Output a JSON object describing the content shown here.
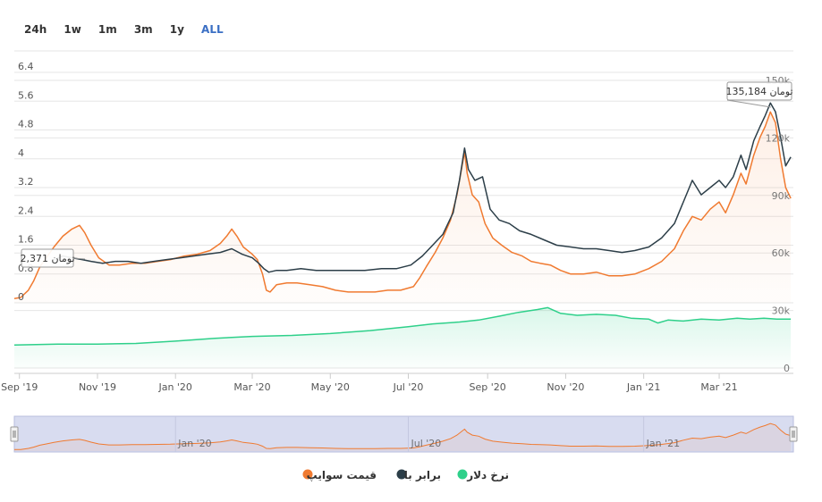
{
  "range_selector": [
    "24h",
    "1w",
    "1m",
    "3m",
    "1y",
    "ALL"
  ],
  "range_selected": "ALL",
  "colors": {
    "swipe": "#f07a30",
    "baraber": "#2c3e48",
    "dollar": "#2ed08a",
    "grid": "#e6e6e6",
    "navigator_mask": "#d8dcf0"
  },
  "chart_data": {
    "type": "line",
    "x_tick_labels": [
      "Sep '19",
      "Nov '19",
      "Jan '20",
      "Mar '20",
      "May '20",
      "Jul '20",
      "Sep '20",
      "Nov '20",
      "Jan '21",
      "Mar '21"
    ],
    "x_ticks": [
      "2019-09-01",
      "2019-11-01",
      "2020-01-01",
      "2020-03-01",
      "2020-05-01",
      "2020-07-01",
      "2020-09-01",
      "2020-11-01",
      "2021-01-01",
      "2021-03-01"
    ],
    "xlim": [
      "2019-08-28",
      "2021-04-28"
    ],
    "left_axis": {
      "ticks": [
        "0",
        "0.8",
        "1.6",
        "2.4",
        "3.2",
        "4",
        "4.8",
        "5.6",
        "6.4"
      ],
      "ylim": [
        0,
        6.4
      ]
    },
    "right_axis": {
      "ticks": [
        "0",
        "30k",
        "60k",
        "90k",
        "120k",
        "150k"
      ],
      "ylim": [
        0,
        150000
      ]
    },
    "navigator_labels": [
      "Jan '20",
      "Jul '20",
      "Jan '21"
    ],
    "tooltips": [
      {
        "text": "2,371 تومان"
      },
      {
        "text": "135,184 تومان"
      }
    ],
    "grid": true,
    "legend_placement": "bottom-center",
    "series": [
      {
        "name": "قیمت سوایپ",
        "color": "#f07a30",
        "axis": "left",
        "points": [
          [
            "2019-08-28",
            0.12
          ],
          [
            "2019-09-02",
            0.15
          ],
          [
            "2019-09-08",
            0.35
          ],
          [
            "2019-09-12",
            0.6
          ],
          [
            "2019-09-17",
            1.0
          ],
          [
            "2019-09-22",
            1.25
          ],
          [
            "2019-09-28",
            1.55
          ],
          [
            "2019-10-05",
            1.85
          ],
          [
            "2019-10-12",
            2.05
          ],
          [
            "2019-10-18",
            2.15
          ],
          [
            "2019-10-22",
            1.95
          ],
          [
            "2019-10-27",
            1.6
          ],
          [
            "2019-11-02",
            1.25
          ],
          [
            "2019-11-10",
            1.05
          ],
          [
            "2019-11-18",
            1.05
          ],
          [
            "2019-11-28",
            1.1
          ],
          [
            "2019-12-08",
            1.1
          ],
          [
            "2019-12-18",
            1.15
          ],
          [
            "2019-12-28",
            1.2
          ],
          [
            "2020-01-08",
            1.3
          ],
          [
            "2020-01-18",
            1.35
          ],
          [
            "2020-01-28",
            1.45
          ],
          [
            "2020-02-05",
            1.65
          ],
          [
            "2020-02-10",
            1.85
          ],
          [
            "2020-02-14",
            2.05
          ],
          [
            "2020-02-18",
            1.85
          ],
          [
            "2020-02-23",
            1.55
          ],
          [
            "2020-03-01",
            1.35
          ],
          [
            "2020-03-05",
            1.2
          ],
          [
            "2020-03-09",
            0.8
          ],
          [
            "2020-03-12",
            0.35
          ],
          [
            "2020-03-15",
            0.3
          ],
          [
            "2020-03-20",
            0.5
          ],
          [
            "2020-03-28",
            0.55
          ],
          [
            "2020-04-05",
            0.55
          ],
          [
            "2020-04-15",
            0.5
          ],
          [
            "2020-04-25",
            0.45
          ],
          [
            "2020-05-05",
            0.35
          ],
          [
            "2020-05-15",
            0.3
          ],
          [
            "2020-05-25",
            0.3
          ],
          [
            "2020-06-05",
            0.3
          ],
          [
            "2020-06-15",
            0.35
          ],
          [
            "2020-06-25",
            0.35
          ],
          [
            "2020-07-05",
            0.45
          ],
          [
            "2020-07-10",
            0.7
          ],
          [
            "2020-07-15",
            1.0
          ],
          [
            "2020-07-22",
            1.4
          ],
          [
            "2020-07-28",
            1.8
          ],
          [
            "2020-08-03",
            2.3
          ],
          [
            "2020-08-08",
            3.0
          ],
          [
            "2020-08-12",
            3.8
          ],
          [
            "2020-08-14",
            4.2
          ],
          [
            "2020-08-16",
            3.6
          ],
          [
            "2020-08-20",
            3.0
          ],
          [
            "2020-08-25",
            2.8
          ],
          [
            "2020-08-30",
            2.2
          ],
          [
            "2020-09-05",
            1.8
          ],
          [
            "2020-09-12",
            1.6
          ],
          [
            "2020-09-20",
            1.4
          ],
          [
            "2020-09-28",
            1.3
          ],
          [
            "2020-10-05",
            1.15
          ],
          [
            "2020-10-12",
            1.1
          ],
          [
            "2020-10-20",
            1.05
          ],
          [
            "2020-10-28",
            0.9
          ],
          [
            "2020-11-05",
            0.8
          ],
          [
            "2020-11-15",
            0.8
          ],
          [
            "2020-11-25",
            0.85
          ],
          [
            "2020-12-05",
            0.75
          ],
          [
            "2020-12-15",
            0.75
          ],
          [
            "2020-12-25",
            0.8
          ],
          [
            "2021-01-05",
            0.95
          ],
          [
            "2021-01-15",
            1.15
          ],
          [
            "2021-01-25",
            1.5
          ],
          [
            "2021-02-01",
            2.0
          ],
          [
            "2021-02-08",
            2.4
          ],
          [
            "2021-02-15",
            2.3
          ],
          [
            "2021-02-22",
            2.6
          ],
          [
            "2021-03-01",
            2.8
          ],
          [
            "2021-03-06",
            2.5
          ],
          [
            "2021-03-12",
            3.0
          ],
          [
            "2021-03-18",
            3.6
          ],
          [
            "2021-03-22",
            3.3
          ],
          [
            "2021-03-28",
            4.1
          ],
          [
            "2021-04-02",
            4.6
          ],
          [
            "2021-04-06",
            4.9
          ],
          [
            "2021-04-10",
            5.3
          ],
          [
            "2021-04-14",
            5.0
          ],
          [
            "2021-04-18",
            4.0
          ],
          [
            "2021-04-22",
            3.2
          ],
          [
            "2021-04-26",
            2.9
          ]
        ]
      },
      {
        "name": "برابر با",
        "color": "#2c3e48",
        "axis": "left",
        "points": [
          [
            "2019-09-28",
            1.2
          ],
          [
            "2019-10-05",
            1.3
          ],
          [
            "2019-10-12",
            1.25
          ],
          [
            "2019-10-20",
            1.2
          ],
          [
            "2019-10-27",
            1.15
          ],
          [
            "2019-11-05",
            1.1
          ],
          [
            "2019-11-15",
            1.15
          ],
          [
            "2019-11-25",
            1.15
          ],
          [
            "2019-12-05",
            1.1
          ],
          [
            "2019-12-15",
            1.15
          ],
          [
            "2019-12-25",
            1.2
          ],
          [
            "2020-01-05",
            1.25
          ],
          [
            "2020-01-15",
            1.3
          ],
          [
            "2020-01-25",
            1.35
          ],
          [
            "2020-02-05",
            1.4
          ],
          [
            "2020-02-14",
            1.5
          ],
          [
            "2020-02-22",
            1.35
          ],
          [
            "2020-03-01",
            1.25
          ],
          [
            "2020-03-06",
            1.1
          ],
          [
            "2020-03-10",
            0.95
          ],
          [
            "2020-03-14",
            0.85
          ],
          [
            "2020-03-20",
            0.9
          ],
          [
            "2020-03-28",
            0.9
          ],
          [
            "2020-04-08",
            0.95
          ],
          [
            "2020-04-20",
            0.9
          ],
          [
            "2020-05-01",
            0.9
          ],
          [
            "2020-05-15",
            0.9
          ],
          [
            "2020-05-28",
            0.9
          ],
          [
            "2020-06-10",
            0.95
          ],
          [
            "2020-06-22",
            0.95
          ],
          [
            "2020-07-03",
            1.05
          ],
          [
            "2020-07-12",
            1.3
          ],
          [
            "2020-07-20",
            1.6
          ],
          [
            "2020-07-28",
            1.9
          ],
          [
            "2020-08-05",
            2.5
          ],
          [
            "2020-08-10",
            3.4
          ],
          [
            "2020-08-14",
            4.3
          ],
          [
            "2020-08-17",
            3.7
          ],
          [
            "2020-08-22",
            3.4
          ],
          [
            "2020-08-28",
            3.5
          ],
          [
            "2020-09-03",
            2.6
          ],
          [
            "2020-09-10",
            2.3
          ],
          [
            "2020-09-18",
            2.2
          ],
          [
            "2020-09-26",
            2.0
          ],
          [
            "2020-10-05",
            1.9
          ],
          [
            "2020-10-15",
            1.75
          ],
          [
            "2020-10-25",
            1.6
          ],
          [
            "2020-11-05",
            1.55
          ],
          [
            "2020-11-15",
            1.5
          ],
          [
            "2020-11-25",
            1.5
          ],
          [
            "2020-12-05",
            1.45
          ],
          [
            "2020-12-15",
            1.4
          ],
          [
            "2020-12-25",
            1.45
          ],
          [
            "2021-01-05",
            1.55
          ],
          [
            "2021-01-15",
            1.8
          ],
          [
            "2021-01-25",
            2.2
          ],
          [
            "2021-02-01",
            2.8
          ],
          [
            "2021-02-08",
            3.4
          ],
          [
            "2021-02-15",
            3.0
          ],
          [
            "2021-02-22",
            3.2
          ],
          [
            "2021-03-01",
            3.4
          ],
          [
            "2021-03-06",
            3.2
          ],
          [
            "2021-03-12",
            3.5
          ],
          [
            "2021-03-18",
            4.1
          ],
          [
            "2021-03-22",
            3.7
          ],
          [
            "2021-03-28",
            4.5
          ],
          [
            "2021-04-02",
            4.9
          ],
          [
            "2021-04-06",
            5.2
          ],
          [
            "2021-04-10",
            5.55
          ],
          [
            "2021-04-14",
            5.3
          ],
          [
            "2021-04-18",
            4.6
          ],
          [
            "2021-04-22",
            3.8
          ],
          [
            "2021-04-26",
            4.05
          ]
        ]
      },
      {
        "name": "نرخ دلار",
        "color": "#2ed08a",
        "axis": "right",
        "points": [
          [
            "2019-08-28",
            12000
          ],
          [
            "2019-10-01",
            12500
          ],
          [
            "2019-11-01",
            12500
          ],
          [
            "2019-12-01",
            12800
          ],
          [
            "2020-01-01",
            14000
          ],
          [
            "2020-02-01",
            15500
          ],
          [
            "2020-03-01",
            16500
          ],
          [
            "2020-04-01",
            17000
          ],
          [
            "2020-05-01",
            18000
          ],
          [
            "2020-06-01",
            19500
          ],
          [
            "2020-07-01",
            21500
          ],
          [
            "2020-07-20",
            23000
          ],
          [
            "2020-08-10",
            24000
          ],
          [
            "2020-08-25",
            25000
          ],
          [
            "2020-09-10",
            27000
          ],
          [
            "2020-09-25",
            29000
          ],
          [
            "2020-10-10",
            30500
          ],
          [
            "2020-10-18",
            31500
          ],
          [
            "2020-10-28",
            28500
          ],
          [
            "2020-11-10",
            27500
          ],
          [
            "2020-11-25",
            28000
          ],
          [
            "2020-12-10",
            27500
          ],
          [
            "2020-12-22",
            26000
          ],
          [
            "2021-01-05",
            25500
          ],
          [
            "2021-01-12",
            23500
          ],
          [
            "2021-01-20",
            25000
          ],
          [
            "2021-02-01",
            24500
          ],
          [
            "2021-02-15",
            25500
          ],
          [
            "2021-03-01",
            25000
          ],
          [
            "2021-03-15",
            26000
          ],
          [
            "2021-03-25",
            25500
          ],
          [
            "2021-04-05",
            26000
          ],
          [
            "2021-04-15",
            25500
          ],
          [
            "2021-04-26",
            25500
          ]
        ]
      }
    ]
  }
}
